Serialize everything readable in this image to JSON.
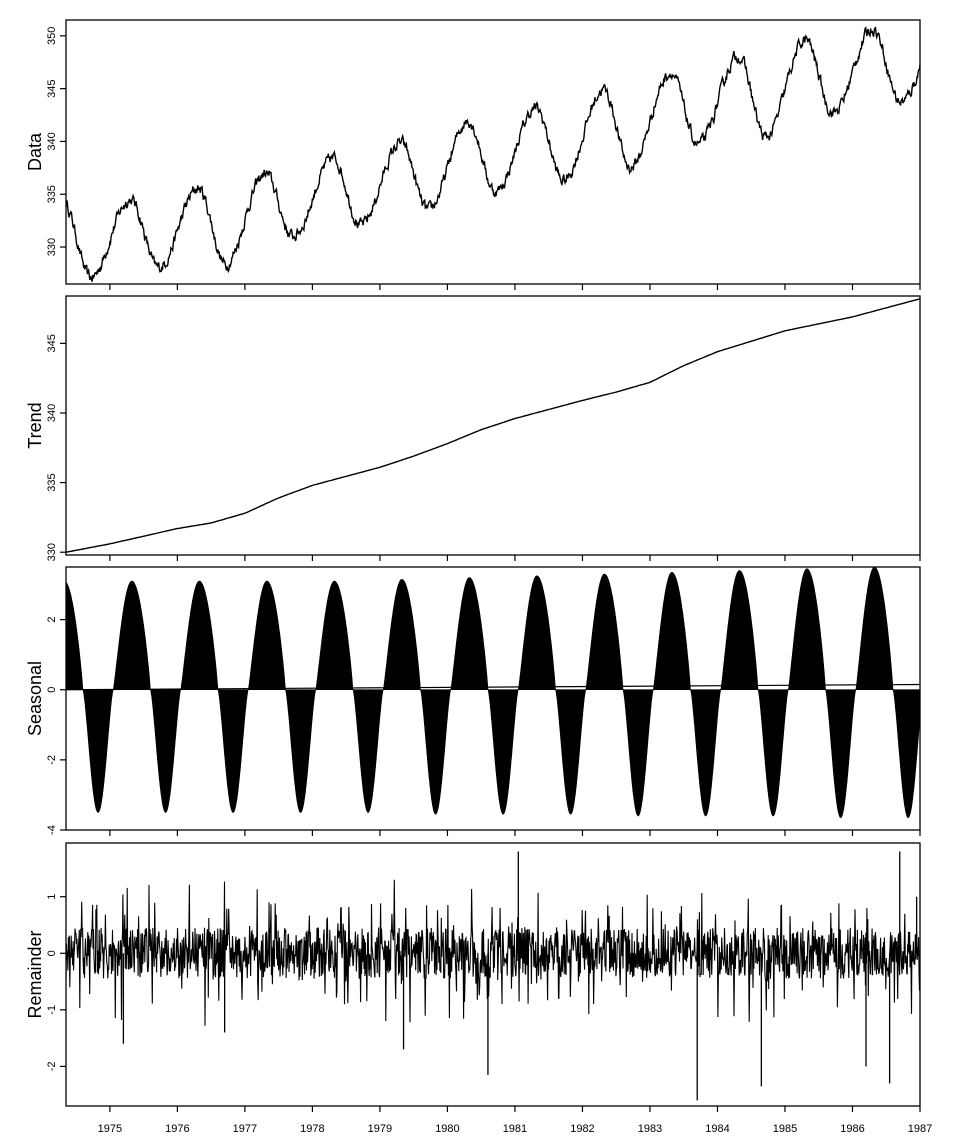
{
  "chart_data": [
    {
      "type": "line",
      "ylabel": "Data",
      "xlim": [
        1974.35,
        1987.0
      ],
      "ylim": [
        326.5,
        351.5
      ],
      "yticks": [
        330,
        335,
        340,
        345,
        350
      ],
      "xticks": [
        1975,
        1976,
        1977,
        1978,
        1979,
        1980,
        1981,
        1982,
        1983,
        1984,
        1985,
        1986,
        1987
      ],
      "x_labels_shown": false,
      "series": [
        {
          "description": "daily measurements with seasonal cycle and upward trend; yearly peaks (approx.)",
          "x": [
            1975.25,
            1976.27,
            1977.3,
            1978.3,
            1979.3,
            1980.3,
            1981.3,
            1982.3,
            1983.3,
            1984.3,
            1985.3,
            1986.3
          ],
          "values": [
            334.7,
            335.8,
            337.2,
            338.7,
            340.1,
            342.3,
            343.4,
            345.2,
            346.8,
            348.4,
            349.9,
            351.0
          ]
        },
        {
          "description": "yearly troughs (approx.)",
          "x": [
            1974.72,
            1975.72,
            1976.72,
            1977.72,
            1978.72,
            1979.72,
            1980.72,
            1981.72,
            1982.72,
            1983.72,
            1984.72,
            1985.72,
            1986.72
          ],
          "values": [
            326.8,
            327.8,
            328.0,
            330.8,
            331.8,
            333.2,
            335.0,
            336.0,
            337.2,
            339.5,
            340.0,
            342.5,
            343.5
          ]
        }
      ]
    },
    {
      "type": "line",
      "ylabel": "Trend",
      "xlim": [
        1974.35,
        1987.0
      ],
      "ylim": [
        329.8,
        348.4
      ],
      "yticks": [
        330,
        335,
        340,
        345
      ],
      "xticks": [
        1975,
        1976,
        1977,
        1978,
        1979,
        1980,
        1981,
        1982,
        1983,
        1984,
        1985,
        1986,
        1987
      ],
      "x_labels_shown": false,
      "series": [
        {
          "x": [
            1974.35,
            1975.0,
            1976.0,
            1976.5,
            1977.0,
            1977.5,
            1978.0,
            1979.0,
            1979.5,
            1980.0,
            1980.5,
            1981.0,
            1982.0,
            1982.5,
            1983.0,
            1983.5,
            1984.0,
            1985.0,
            1986.0,
            1987.0
          ],
          "values": [
            330.0,
            330.6,
            331.7,
            332.1,
            332.8,
            333.9,
            334.8,
            336.1,
            336.9,
            337.8,
            338.8,
            339.6,
            340.9,
            341.5,
            342.2,
            343.4,
            344.4,
            345.9,
            346.9,
            348.2
          ]
        }
      ]
    },
    {
      "type": "area",
      "ylabel": "Seasonal",
      "xlim": [
        1974.35,
        1987.0
      ],
      "ylim": [
        -4.0,
        3.5
      ],
      "yticks": [
        -4,
        -2,
        0,
        2
      ],
      "xticks": [
        1975,
        1976,
        1977,
        1978,
        1979,
        1980,
        1981,
        1982,
        1983,
        1984,
        1985,
        1986,
        1987
      ],
      "x_labels_shown": false,
      "series": [
        {
          "description": "seasonal component per year: peak near early May, trough near early October",
          "peak_x": [
            1975.33,
            1976.33,
            1977.33,
            1978.33,
            1979.33,
            1980.33,
            1981.33,
            1982.33,
            1983.33,
            1984.33,
            1985.33,
            1986.33
          ],
          "peak_values": [
            3.1,
            3.1,
            3.1,
            3.1,
            3.15,
            3.2,
            3.25,
            3.3,
            3.35,
            3.4,
            3.45,
            3.5
          ],
          "trough_x": [
            1974.72,
            1975.72,
            1976.72,
            1977.72,
            1978.72,
            1979.72,
            1980.72,
            1981.72,
            1982.72,
            1983.72,
            1984.72,
            1985.72,
            1986.72
          ],
          "trough_values": [
            -3.5,
            -3.5,
            -3.5,
            -3.5,
            -3.5,
            -3.55,
            -3.55,
            -3.55,
            -3.6,
            -3.6,
            -3.6,
            -3.65,
            -3.65
          ]
        }
      ]
    },
    {
      "type": "line",
      "ylabel": "Remainder",
      "xlim": [
        1974.35,
        1987.0
      ],
      "ylim": [
        -2.7,
        1.95
      ],
      "yticks": [
        -2,
        -1,
        0,
        1
      ],
      "xticks": [
        1975,
        1976,
        1977,
        1978,
        1979,
        1980,
        1981,
        1982,
        1983,
        1984,
        1985,
        1986,
        1987
      ],
      "xticklabels": [
        "1975",
        "1976",
        "1977",
        "1978",
        "1979",
        "1980",
        "1981",
        "1982",
        "1983",
        "1984",
        "1985",
        "1986",
        "1987"
      ],
      "series": [
        {
          "description": "irregular remainder spikes, mostly within -1..1; notable extremes (approx.)",
          "x": [
            1975.2,
            1976.7,
            1979.35,
            1980.6,
            1981.05,
            1983.7,
            1984.65,
            1986.2,
            1986.55,
            1986.7,
            1986.95
          ],
          "values": [
            -1.6,
            -1.4,
            -1.7,
            -2.15,
            1.8,
            -2.6,
            -2.35,
            -2.0,
            -2.3,
            1.8,
            1.0
          ]
        }
      ]
    }
  ]
}
